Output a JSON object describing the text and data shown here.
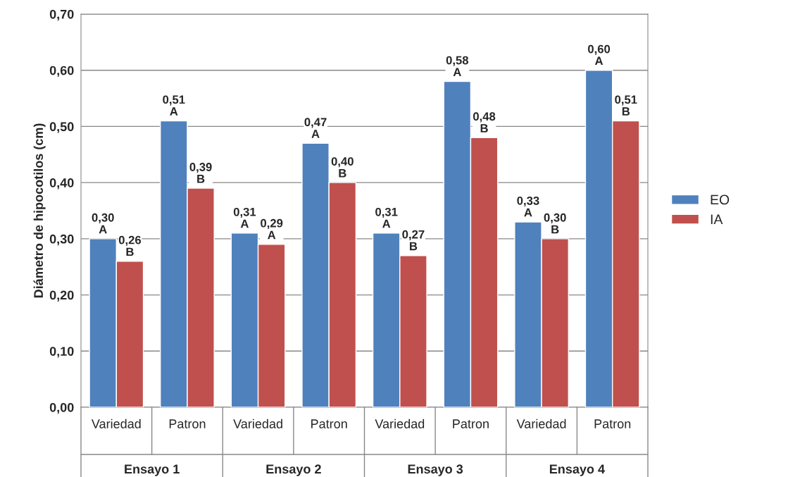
{
  "chart_data": {
    "type": "bar",
    "ylabel": "Diámetro de hipocotilos (cm)",
    "categories": [
      "Variedad",
      "Patron",
      "Variedad",
      "Patron",
      "Variedad",
      "Patron",
      "Variedad",
      "Patron"
    ],
    "series": [
      {
        "name": "EO",
        "color": "#4f81bd",
        "values": [
          0.3,
          0.51,
          0.31,
          0.47,
          0.31,
          0.58,
          0.33,
          0.6
        ],
        "value_labels": [
          "0,30\nA",
          "0,51\nA",
          "0,31\nA",
          "0,47\nA",
          "0,31\nA",
          "0,58\nA",
          "0,33\nA",
          "0,60\nA"
        ]
      },
      {
        "name": "IA",
        "color": "#c0504d",
        "values": [
          0.26,
          0.39,
          0.29,
          0.4,
          0.27,
          0.48,
          0.3,
          0.51
        ],
        "value_labels": [
          "0,26\nB",
          "0,39\nB",
          "0,29\nA",
          "0,40\nB",
          "0,27\nB",
          "0,48\nB",
          "0,30\nB",
          "0,51\nB"
        ]
      }
    ],
    "ylim": [
      0,
      0.7
    ],
    "yticks": [
      {
        "value": 0,
        "label": "0,00"
      },
      {
        "value": 0.1,
        "label": "0,10"
      },
      {
        "value": 0.2,
        "label": "0,20"
      },
      {
        "value": 0.3,
        "label": "0,30"
      },
      {
        "value": 0.4,
        "label": "0,40"
      },
      {
        "value": 0.5,
        "label": "0,50"
      },
      {
        "value": 0.6,
        "label": "0,60"
      },
      {
        "value": 0.7,
        "label": "0,70"
      }
    ],
    "grid": "y",
    "legend": "right",
    "annotations": [
      "Ensayo 1",
      "Ensayo 2",
      "Ensayo 3",
      "Ensayo 4"
    ]
  }
}
